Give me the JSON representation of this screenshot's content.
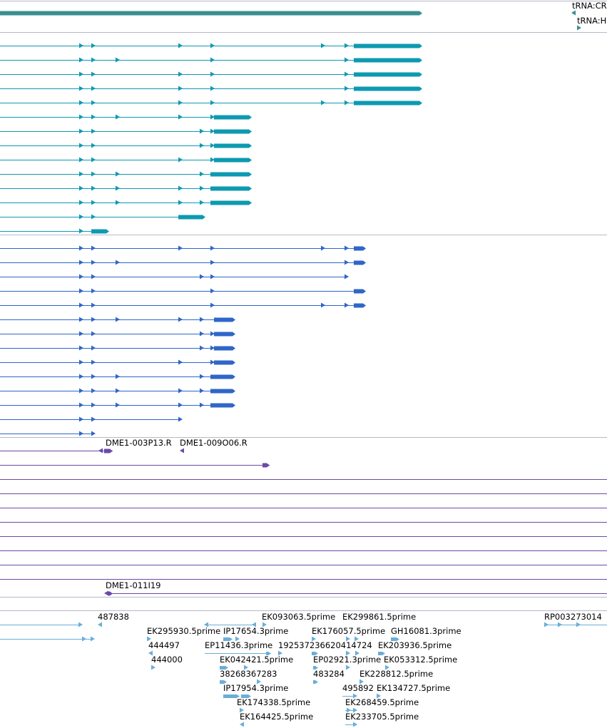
{
  "colors": {
    "top_gene": "#3a8f8f",
    "trna": "#3a8f8f",
    "cds_teal": "#0d9ab0",
    "cds_blue": "#2f66c8",
    "bac": "#6a4aa8",
    "est": "#6aaed8",
    "separator": "#b8b8c8"
  },
  "trna_labels": [
    {
      "text": "tRNA:CR"
    },
    {
      "text": "tRNA:H"
    }
  ],
  "bac_labels": [
    {
      "text": "DME1-003P13.R"
    },
    {
      "text": "DME1-009O06.R"
    },
    {
      "text": "DME1-011I19"
    }
  ],
  "est_labels": [
    {
      "text": "487838"
    },
    {
      "text": "EK093063.5prime"
    },
    {
      "text": "EK299861.5prime"
    },
    {
      "text": "RP003273014"
    },
    {
      "text": "EK295930.5prime"
    },
    {
      "text": "IP17654.3prime"
    },
    {
      "text": "EK176057.5prime"
    },
    {
      "text": "GH16081.3prime"
    },
    {
      "text": "444497"
    },
    {
      "text": "EP11436.3prime"
    },
    {
      "text": "192537236620414724"
    },
    {
      "text": "EK203936.5prime"
    },
    {
      "text": "444000"
    },
    {
      "text": "EK042421.5prime"
    },
    {
      "text": "EP02921.3prime"
    },
    {
      "text": "EK053312.5prime"
    },
    {
      "text": "38268367283"
    },
    {
      "text": "483284"
    },
    {
      "text": "EK228812.5prime"
    },
    {
      "text": "IP17954.3prime"
    },
    {
      "text": "495892"
    },
    {
      "text": "EK134727.5prime"
    },
    {
      "text": "EK174338.5prime"
    },
    {
      "text": "EK268459.5prime"
    },
    {
      "text": "EK164425.5prime"
    },
    {
      "text": "EK233705.5prime"
    }
  ]
}
